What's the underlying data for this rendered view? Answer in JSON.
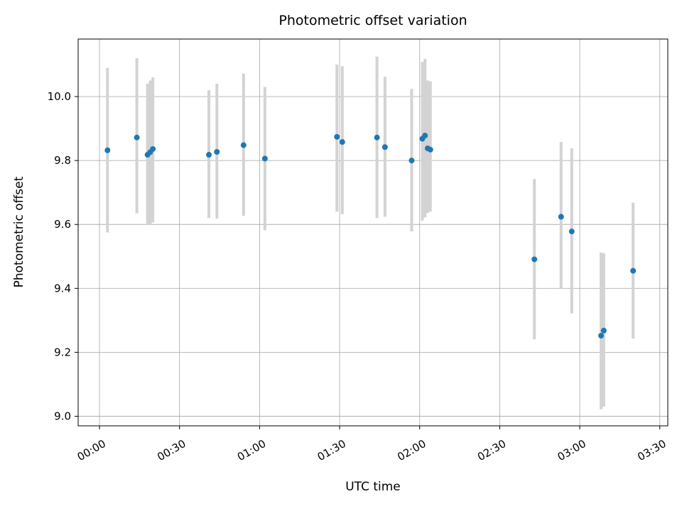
{
  "chart_data": {
    "type": "scatter",
    "title": "Photometric offset variation",
    "xlabel": "UTC time",
    "ylabel": "Photometric offset",
    "x_unit": "minutes after 00:00 UTC",
    "grid": true,
    "legend": "none",
    "xlim": [
      -8,
      213
    ],
    "ylim": [
      8.97,
      10.18
    ],
    "x_ticks": [
      0,
      30,
      60,
      90,
      120,
      150,
      180,
      210
    ],
    "x_tick_labels": [
      "00:00",
      "00:30",
      "01:00",
      "01:30",
      "02:00",
      "02:30",
      "03:00",
      "03:30"
    ],
    "y_ticks": [
      9.0,
      9.2,
      9.4,
      9.6,
      9.8,
      10.0
    ],
    "y_tick_labels": [
      "9.0",
      "9.2",
      "9.4",
      "9.6",
      "9.8",
      "10.0"
    ],
    "marker_color": "#1f77b4",
    "errorbar_color": "#d3d3d3",
    "grid_color": "#b0b0b0",
    "points": [
      {
        "t_min": 3,
        "y": 9.832,
        "y_lo": 9.575,
        "y_hi": 10.09
      },
      {
        "t_min": 14,
        "y": 9.872,
        "y_lo": 9.635,
        "y_hi": 10.12
      },
      {
        "t_min": 18,
        "y": 9.818,
        "y_lo": 9.598,
        "y_hi": 10.04
      },
      {
        "t_min": 19,
        "y": 9.826,
        "y_lo": 9.6,
        "y_hi": 10.05
      },
      {
        "t_min": 20,
        "y": 9.836,
        "y_lo": 9.606,
        "y_hi": 10.06
      },
      {
        "t_min": 41,
        "y": 9.818,
        "y_lo": 9.62,
        "y_hi": 10.02
      },
      {
        "t_min": 44,
        "y": 9.827,
        "y_lo": 9.618,
        "y_hi": 10.04
      },
      {
        "t_min": 54,
        "y": 9.848,
        "y_lo": 9.627,
        "y_hi": 10.072
      },
      {
        "t_min": 62,
        "y": 9.806,
        "y_lo": 9.582,
        "y_hi": 10.03
      },
      {
        "t_min": 89,
        "y": 9.874,
        "y_lo": 9.64,
        "y_hi": 10.1
      },
      {
        "t_min": 91,
        "y": 9.858,
        "y_lo": 9.632,
        "y_hi": 10.095
      },
      {
        "t_min": 104,
        "y": 9.872,
        "y_lo": 9.62,
        "y_hi": 10.125
      },
      {
        "t_min": 107,
        "y": 9.842,
        "y_lo": 9.624,
        "y_hi": 10.062
      },
      {
        "t_min": 117,
        "y": 9.8,
        "y_lo": 9.578,
        "y_hi": 10.024
      },
      {
        "t_min": 121,
        "y": 9.868,
        "y_lo": 9.612,
        "y_hi": 10.108
      },
      {
        "t_min": 122,
        "y": 9.878,
        "y_lo": 9.622,
        "y_hi": 10.118
      },
      {
        "t_min": 123,
        "y": 9.838,
        "y_lo": 9.636,
        "y_hi": 10.05
      },
      {
        "t_min": 124,
        "y": 9.834,
        "y_lo": 9.64,
        "y_hi": 10.048
      },
      {
        "t_min": 163,
        "y": 9.491,
        "y_lo": 9.241,
        "y_hi": 9.742
      },
      {
        "t_min": 173,
        "y": 9.624,
        "y_lo": 9.398,
        "y_hi": 9.858
      },
      {
        "t_min": 177,
        "y": 9.578,
        "y_lo": 9.322,
        "y_hi": 9.838
      },
      {
        "t_min": 188,
        "y": 9.252,
        "y_lo": 9.022,
        "y_hi": 9.512
      },
      {
        "t_min": 189,
        "y": 9.268,
        "y_lo": 9.03,
        "y_hi": 9.51
      },
      {
        "t_min": 200,
        "y": 9.455,
        "y_lo": 9.243,
        "y_hi": 9.668
      }
    ]
  }
}
